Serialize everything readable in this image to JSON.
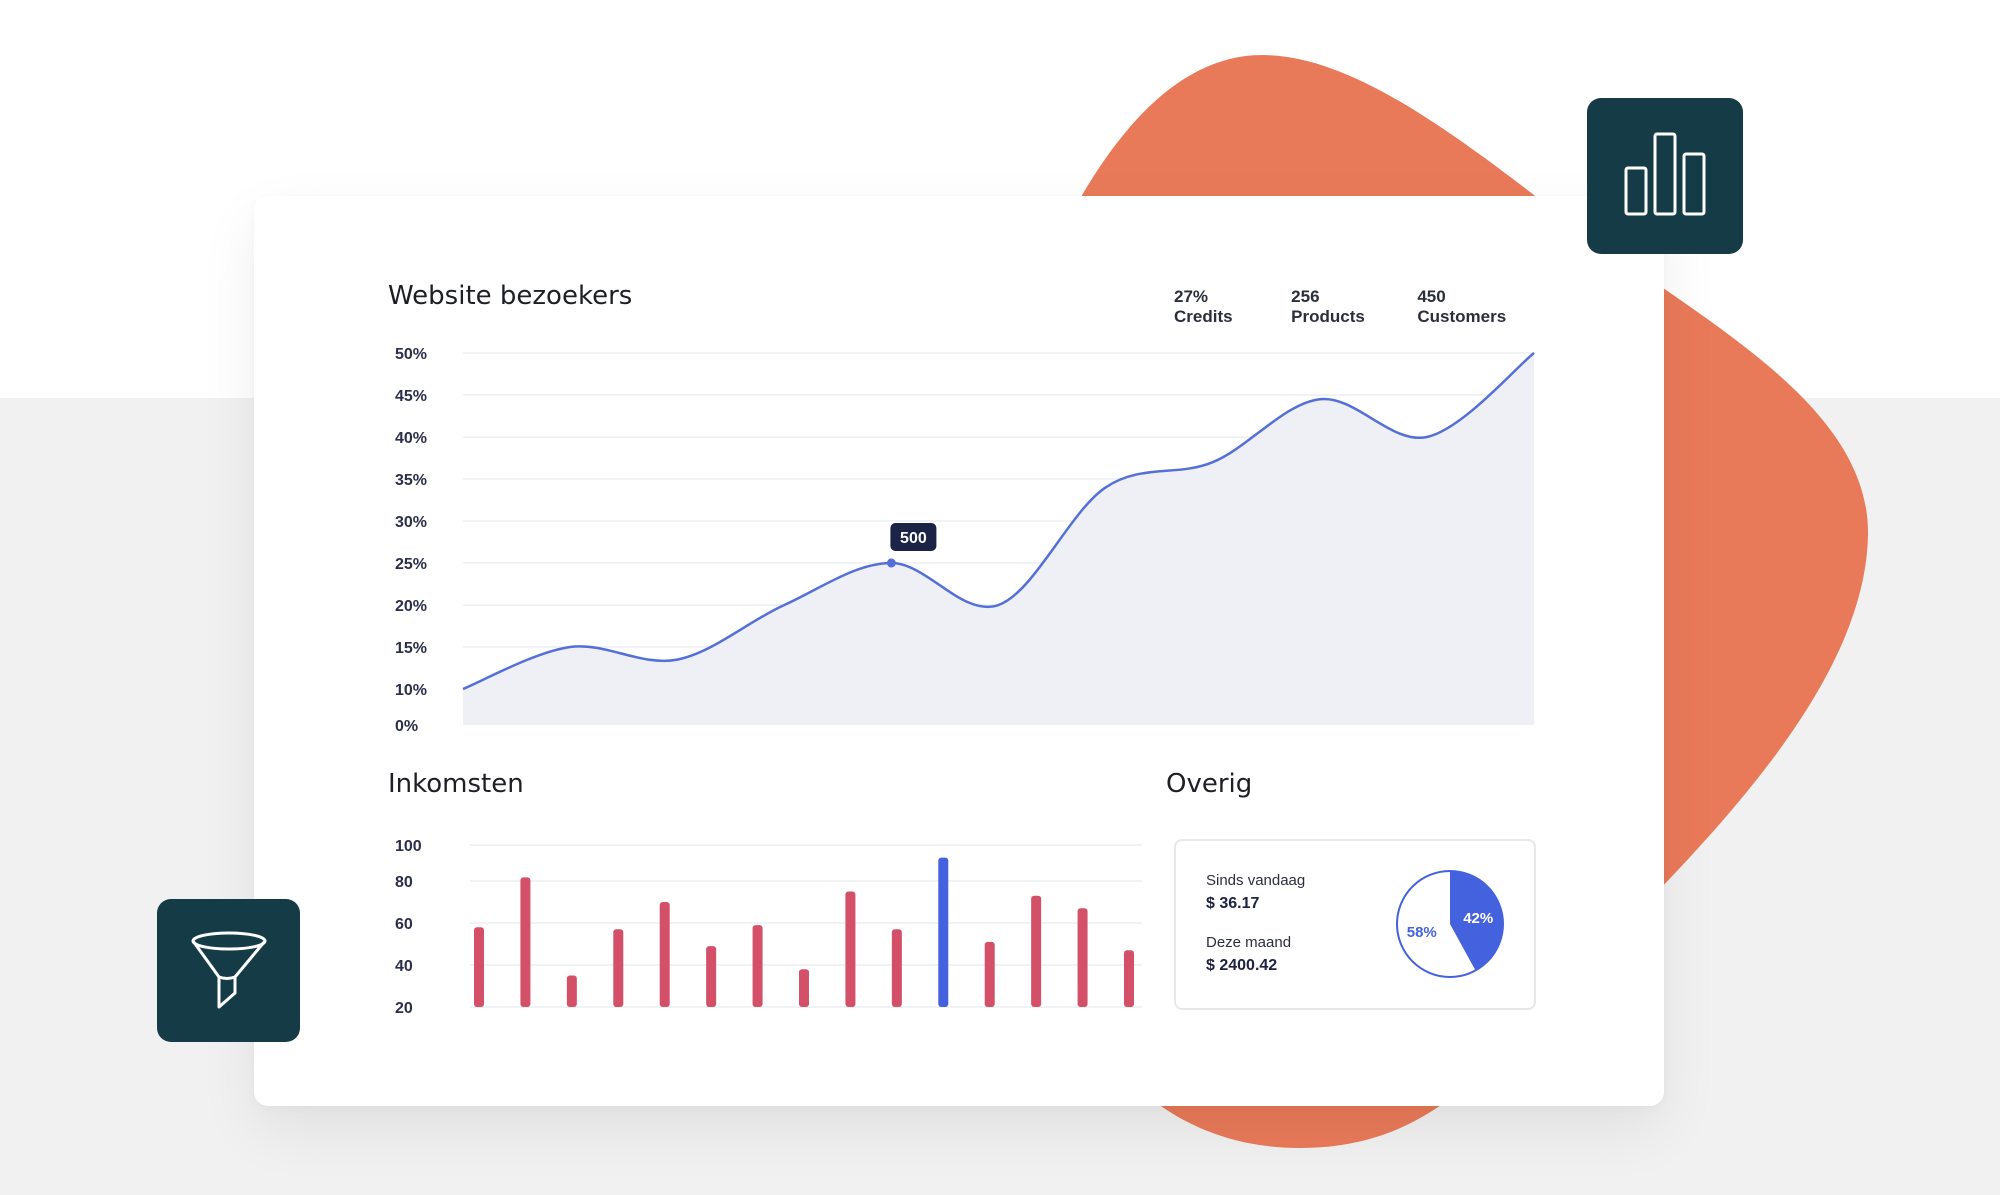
{
  "colors": {
    "accent_orange": "#e97a59",
    "dark_teal": "#153b47",
    "line_blue": "#5470d8",
    "bar_red": "#d35068",
    "bar_highlight": "#4462dd",
    "area_fill": "#eff0f5"
  },
  "icons": {
    "top_right": "bar-chart-icon",
    "bottom_left": "funnel-icon"
  },
  "stats": {
    "credits": "27% Credits",
    "products": "256 Products",
    "customers": "450 Customers"
  },
  "chart_data": [
    {
      "type": "area",
      "title": "Website bezoekers",
      "y_tick_labels": [
        "50%",
        "45%",
        "40%",
        "35%",
        "30%",
        "25%",
        "20%",
        "15%",
        "10%",
        "0%"
      ],
      "points": [
        {
          "x": 0,
          "y": 10
        },
        {
          "x": 1,
          "y": 15
        },
        {
          "x": 2,
          "y": 13.5
        },
        {
          "x": 3,
          "y": 20
        },
        {
          "x": 4,
          "y": 25
        },
        {
          "x": 5,
          "y": 20
        },
        {
          "x": 6,
          "y": 34
        },
        {
          "x": 7,
          "y": 37
        },
        {
          "x": 8,
          "y": 44.5
        },
        {
          "x": 9,
          "y": 40
        },
        {
          "x": 10,
          "y": 50
        }
      ],
      "annotation": {
        "x": 4,
        "label": "500"
      },
      "ylim": [
        0,
        50
      ],
      "grid": true
    },
    {
      "type": "bar",
      "title": "Inkomsten",
      "y_tick_labels": [
        "100",
        "80",
        "60",
        "40",
        "20"
      ],
      "values": [
        58,
        82,
        35,
        57,
        70,
        49,
        59,
        38,
        75,
        57,
        93,
        51,
        73,
        67,
        47
      ],
      "highlight_index": 10,
      "ylim": [
        20,
        100
      ],
      "grid": true
    },
    {
      "type": "pie",
      "title": "Overig",
      "slices": [
        {
          "label": "42%",
          "value": 42,
          "filled": true
        },
        {
          "label": "58%",
          "value": 58,
          "filled": false
        }
      ]
    }
  ],
  "overig": {
    "since_today_label": "Sinds vandaag",
    "since_today_value": "$ 36.17",
    "this_month_label": "Deze maand",
    "this_month_value": "$ 2400.42"
  }
}
